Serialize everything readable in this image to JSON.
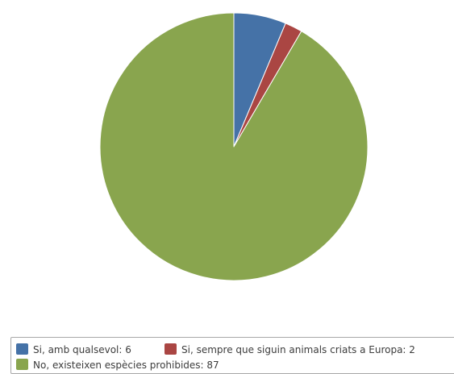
{
  "chart_data": {
    "type": "pie",
    "slices": [
      {
        "label": "Si, amb qualsevol",
        "value": 6,
        "color": "#4572a7"
      },
      {
        "label": "Si, sempre que siguin animals criats a Europa",
        "value": 2,
        "color": "#aa4643"
      },
      {
        "label": "No, existeixen espècies prohibides",
        "value": 87,
        "color": "#89a54e"
      }
    ],
    "legend": {
      "placement": "bottom",
      "items": [
        {
          "text": "Si, amb qualsevol: 6",
          "color": "#4572a7"
        },
        {
          "text": "Si, sempre que siguin animals criats a Europa: 2",
          "color": "#aa4643"
        },
        {
          "text": "No, existeixen espècies prohibides: 87",
          "color": "#89a54e"
        }
      ]
    }
  }
}
